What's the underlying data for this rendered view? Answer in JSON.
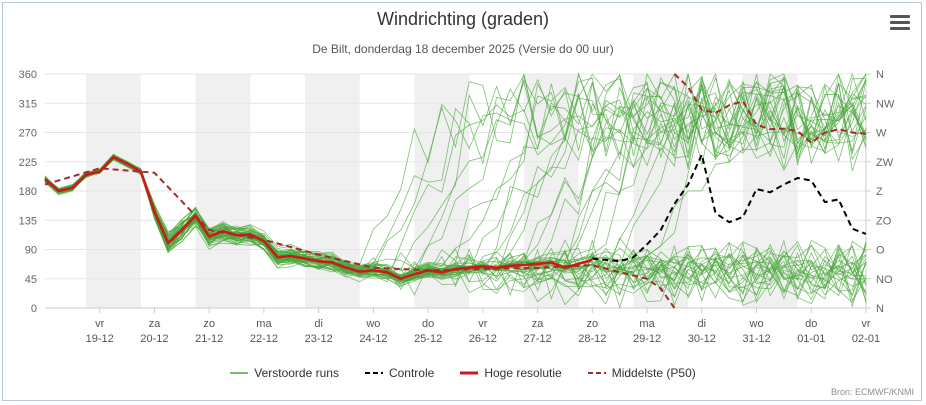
{
  "title": "Windrichting (graden)",
  "subtitle": "De Bilt, donderdag 18 december 2025 (Versie do 00 uur)",
  "credit": "Bron: ECMWF/KNMI",
  "menu_icon": "hamburger-icon",
  "colors": {
    "ensemble": "#4aa63c",
    "control": "#000000",
    "highres": "#cc1a1a",
    "median": "#a52a2a",
    "band": "#f0f0f0",
    "grid": "#e6e6e6"
  },
  "chart_data": {
    "type": "line",
    "x_unit": "days since 18-12 00h",
    "ylim": [
      0,
      360
    ],
    "xlim": [
      0,
      15
    ],
    "y_ticks": [
      0,
      45,
      90,
      135,
      180,
      225,
      270,
      315,
      360
    ],
    "y2_ticks": [
      {
        "v": 0,
        "label": "N"
      },
      {
        "v": 45,
        "label": "NO"
      },
      {
        "v": 90,
        "label": "O"
      },
      {
        "v": 135,
        "label": "ZO"
      },
      {
        "v": 180,
        "label": "Z"
      },
      {
        "v": 225,
        "label": "ZW"
      },
      {
        "v": 270,
        "label": "W"
      },
      {
        "v": 315,
        "label": "NW"
      },
      {
        "v": 360,
        "label": "N"
      }
    ],
    "x_ticks": [
      {
        "x": 1,
        "day": "vr",
        "date": "19-12"
      },
      {
        "x": 2,
        "day": "za",
        "date": "20-12"
      },
      {
        "x": 3,
        "day": "zo",
        "date": "21-12"
      },
      {
        "x": 4,
        "day": "ma",
        "date": "22-12"
      },
      {
        "x": 5,
        "day": "di",
        "date": "23-12"
      },
      {
        "x": 6,
        "day": "wo",
        "date": "24-12"
      },
      {
        "x": 7,
        "day": "do",
        "date": "25-12"
      },
      {
        "x": 8,
        "day": "vr",
        "date": "26-12"
      },
      {
        "x": 9,
        "day": "za",
        "date": "27-12"
      },
      {
        "x": 10,
        "day": "zo",
        "date": "28-12"
      },
      {
        "x": 11,
        "day": "ma",
        "date": "29-12"
      },
      {
        "x": 12,
        "day": "di",
        "date": "30-12"
      },
      {
        "x": 13,
        "day": "wo",
        "date": "31-12"
      },
      {
        "x": 14,
        "day": "do",
        "date": "01-01"
      },
      {
        "x": 15,
        "day": "vr",
        "date": "02-01"
      }
    ],
    "weekend_bands": [
      [
        0.75,
        1.75
      ],
      [
        2.75,
        3.75
      ],
      [
        4.75,
        5.75
      ],
      [
        6.75,
        7.75
      ],
      [
        8.75,
        9.75
      ],
      [
        10.75,
        11.75
      ],
      [
        12.75,
        13.75
      ]
    ],
    "legend": [
      {
        "key": "ensemble",
        "label": "Verstoorde runs",
        "style": "thin"
      },
      {
        "key": "control",
        "label": "Controle",
        "style": "dashed"
      },
      {
        "key": "highres",
        "label": "Hoge resolutie",
        "style": "solid"
      },
      {
        "key": "median",
        "label": "Middelste (P50)",
        "style": "dashed"
      }
    ],
    "highres": {
      "x": [
        0,
        0.25,
        0.5,
        0.75,
        1,
        1.25,
        1.5,
        1.75,
        2,
        2.25,
        2.5,
        2.75,
        3,
        3.25,
        3.5,
        3.75,
        4,
        4.25,
        4.5,
        4.75,
        5,
        5.25,
        5.5,
        5.75,
        6,
        6.25,
        6.5,
        6.75,
        7,
        7.25,
        7.5,
        7.75,
        8,
        8.25,
        8.5,
        8.75,
        9,
        9.25,
        9.5,
        9.75,
        10
      ],
      "y": [
        198,
        180,
        185,
        205,
        210,
        232,
        222,
        210,
        148,
        100,
        120,
        142,
        110,
        118,
        112,
        113,
        103,
        78,
        80,
        76,
        72,
        70,
        62,
        56,
        58,
        55,
        45,
        52,
        58,
        55,
        60,
        62,
        64,
        62,
        65,
        66,
        68,
        70,
        62,
        68,
        74
      ]
    },
    "control": {
      "x": [
        10,
        10.25,
        10.5,
        10.75,
        11,
        11.25,
        11.5,
        11.75,
        12,
        12.25,
        12.5,
        12.75,
        13,
        13.25,
        13.5,
        13.75,
        14,
        14.25,
        14.5,
        14.75,
        15
      ],
      "y": [
        76,
        74,
        72,
        78,
        98,
        120,
        160,
        190,
        236,
        146,
        132,
        140,
        183,
        178,
        190,
        200,
        196,
        163,
        167,
        122,
        114
      ]
    },
    "median": {
      "x": [
        0,
        1,
        2,
        3,
        4,
        5,
        6,
        7,
        8,
        9,
        10,
        10.5,
        11,
        11.25,
        11.5
      ],
      "y": [
        190,
        215,
        208,
        120,
        105,
        82,
        62,
        58,
        60,
        62,
        66,
        55,
        45,
        30,
        0
      ]
    },
    "median_upper": {
      "x": [
        11.5,
        11.75,
        12,
        12.25,
        12.5,
        12.75,
        13,
        13.25,
        13.5,
        13.75,
        14,
        14.25,
        14.5,
        14.75,
        15
      ],
      "y": [
        360,
        340,
        305,
        300,
        312,
        318,
        282,
        275,
        276,
        272,
        254,
        270,
        275,
        270,
        268
      ]
    }
  }
}
